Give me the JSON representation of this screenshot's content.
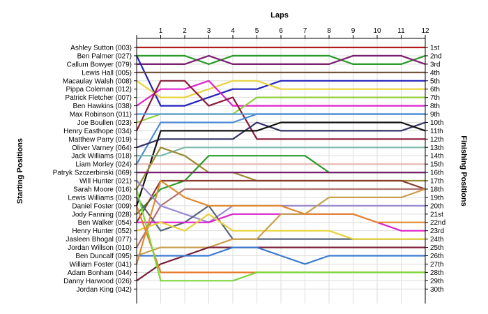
{
  "chart_data": {
    "type": "line",
    "title": "Laps",
    "ylabel_left": "Starting Positions",
    "ylabel_right": "Finishing Positions",
    "x": [
      0,
      1,
      2,
      3,
      4,
      5,
      6,
      7,
      8,
      9,
      10,
      11,
      12
    ],
    "x_tick_labels": [
      "1",
      "2",
      "3",
      "4",
      "5",
      "6",
      "7",
      "8",
      "9",
      "10",
      "11",
      "12"
    ],
    "start_labels": [
      "Ashley Sutton (003)",
      "Ben Palmer (027)",
      "Callum Bowyer (079)",
      "Lewis Hall (005)",
      "Macaulay Walsh (008)",
      "Pippa Coleman (012)",
      "Patrick Fletcher (007)",
      "Ben Hawkins (038)",
      "Max Robinson (011)",
      "Joe Boullen (023)",
      "Henry Easthope (034)",
      "Matthew Parry (019)",
      "Oliver Varney (064)",
      "Jack Williams (018)",
      "Liam Morley (024)",
      "Patryk Szczerbinski (069)",
      "Will Hunter (021)",
      "Sarah Moore (016)",
      "Lewis Williams (020)",
      "Daniel Foster (009)",
      "Jody Fanning (028)",
      "Ben Walker (054)",
      "Henry Hunter (052)",
      "Jasleen Bhogal (077)",
      "Jordan Willson (010)",
      "Ben Duncalf (095)",
      "William Foster (041)",
      "Adam Bonham (044)",
      "Danny Harwood (026)",
      "Jordan King (042)"
    ],
    "finish_labels": [
      "1st",
      "2nd",
      "3rd",
      "4th",
      "5th",
      "6th",
      "7th",
      "8th",
      "9th",
      "10th",
      "11th",
      "12th",
      "13th",
      "14th",
      "15th",
      "16th",
      "17th",
      "18th",
      "19th",
      "20th",
      "21st",
      "22nd",
      "23rd",
      "24th",
      "25th",
      "26th",
      "27th",
      "28th",
      "29th",
      "30th"
    ],
    "y_range": [
      1,
      30
    ],
    "grid": true,
    "series": [
      {
        "color": "#b01c1c",
        "values": [
          1,
          1,
          1,
          1,
          1,
          1,
          1,
          1,
          1,
          1,
          1,
          1,
          1
        ]
      },
      {
        "color": "#2a9a2a",
        "values": [
          2,
          2,
          2,
          3,
          2,
          2,
          2,
          2,
          2,
          3,
          3,
          3,
          2
        ]
      },
      {
        "color": "#7a1f6e",
        "values": [
          3,
          3,
          3,
          2,
          3,
          3,
          3,
          3,
          3,
          2,
          2,
          2,
          3
        ]
      },
      {
        "color": "#2222bb",
        "values": [
          2,
          8,
          8,
          7,
          6,
          6,
          5,
          5,
          5,
          5,
          5,
          5,
          5
        ]
      },
      {
        "color": "#6b4b2e",
        "values": [
          4,
          4,
          4,
          4,
          4,
          4,
          4,
          4,
          4,
          4,
          4,
          4,
          4
        ]
      },
      {
        "color": "#e8d23a",
        "values": [
          5,
          7,
          7,
          6,
          5,
          5,
          6,
          6,
          6,
          6,
          6,
          6,
          6
        ]
      },
      {
        "color": "#dd22cc",
        "values": [
          8,
          6,
          6,
          5,
          8,
          8,
          8,
          8,
          8,
          8,
          8,
          8,
          8
        ]
      },
      {
        "color": "#8fce3a",
        "values": [
          10,
          9,
          9,
          9,
          9,
          7,
          7,
          7,
          7,
          7,
          7,
          7,
          7
        ]
      },
      {
        "color": "#8a1a3a",
        "values": [
          11,
          5,
          5,
          8,
          7,
          12,
          12,
          12,
          12,
          12,
          12,
          12,
          12
        ]
      },
      {
        "color": "#5b9bd5",
        "values": [
          9,
          9,
          9,
          9,
          9,
          9,
          9,
          9,
          9,
          9,
          9,
          9,
          9
        ]
      },
      {
        "color": "#4a8ad8",
        "values": [
          15,
          10,
          10,
          10,
          10,
          9,
          9,
          9,
          9,
          9,
          9,
          9,
          9
        ]
      },
      {
        "color": "#333366",
        "values": [
          13,
          12,
          12,
          12,
          12,
          10,
          11,
          11,
          11,
          11,
          11,
          11,
          10
        ]
      },
      {
        "color": "#111111",
        "values": [
          20,
          11,
          11,
          11,
          11,
          11,
          10,
          10,
          10,
          10,
          10,
          10,
          11
        ]
      },
      {
        "color": "#7fb8a8",
        "values": [
          14,
          14,
          13,
          13,
          13,
          13,
          13,
          13,
          13,
          13,
          13,
          13,
          13
        ]
      },
      {
        "color": "#e8b8b0",
        "values": [
          15,
          15,
          15,
          15,
          15,
          15,
          15,
          15,
          15,
          15,
          15,
          15,
          15
        ]
      },
      {
        "color": "#2a9a2a",
        "values": [
          21,
          18,
          17,
          14,
          14,
          14,
          14,
          14,
          16,
          16,
          16,
          16,
          16
        ]
      },
      {
        "color": "#9a8a30",
        "values": [
          18,
          13,
          14,
          16,
          16,
          17,
          17,
          17,
          17,
          17,
          17,
          17,
          17
        ]
      },
      {
        "color": "#8a3a2a",
        "values": [
          22,
          17,
          17,
          17,
          17,
          17,
          17,
          17,
          17,
          17,
          17,
          17,
          18
        ]
      },
      {
        "color": "#7a1f6e",
        "values": [
          16,
          16,
          16,
          16,
          16,
          16,
          16,
          16,
          16,
          16,
          16,
          16,
          16
        ]
      },
      {
        "color": "#b07070",
        "values": [
          25,
          20,
          18,
          18,
          18,
          18,
          18,
          18,
          18,
          18,
          18,
          18,
          18
        ]
      },
      {
        "color": "#9a8ad0",
        "values": [
          17,
          20,
          21,
          22,
          20,
          20,
          20,
          20,
          20,
          20,
          20,
          20,
          20
        ]
      },
      {
        "color": "#556677",
        "values": [
          19,
          23,
          22,
          20,
          24,
          24,
          24,
          24,
          24,
          24,
          24,
          24,
          24
        ]
      },
      {
        "color": "#dd22cc",
        "values": [
          22,
          22,
          22,
          22,
          21,
          21,
          21,
          21,
          21,
          21,
          22,
          23,
          23
        ]
      },
      {
        "color": "#e8d23a",
        "values": [
          23,
          22,
          23,
          21,
          23,
          23,
          23,
          23,
          23,
          24,
          24,
          24,
          24
        ]
      },
      {
        "color": "#c7a04e",
        "values": [
          26,
          25,
          25,
          25,
          24,
          24,
          21,
          21,
          19,
          19,
          19,
          19,
          18
        ]
      },
      {
        "color": "#7a1f3a",
        "values": [
          29,
          27,
          26,
          25,
          25,
          25,
          25,
          25,
          25,
          25,
          25,
          25,
          25
        ]
      },
      {
        "color": "#3a7ad0",
        "values": [
          26,
          26,
          26,
          26,
          25,
          25,
          26,
          27,
          26,
          26,
          26,
          26,
          26
        ]
      },
      {
        "color": "#e87a2a",
        "values": [
          20,
          28,
          28,
          28,
          28,
          28,
          28,
          28,
          28,
          28,
          28,
          28,
          28
        ]
      },
      {
        "color": "#7fd63a",
        "values": [
          18,
          29,
          29,
          29,
          29,
          28,
          28,
          28,
          28,
          28,
          28,
          28,
          28
        ]
      },
      {
        "color": "#e08a30",
        "values": [
          27,
          17,
          19,
          20,
          20,
          20,
          20,
          21,
          21,
          21,
          22,
          22,
          22
        ]
      }
    ]
  }
}
